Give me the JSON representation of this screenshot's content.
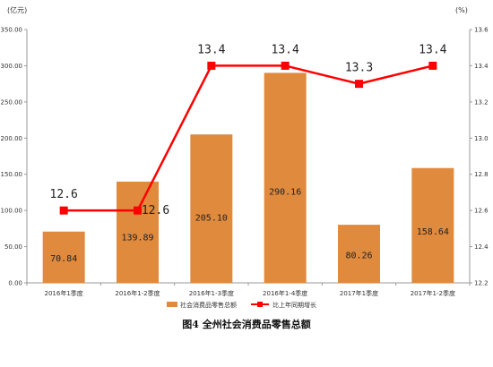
{
  "chart_data": {
    "type": "bar",
    "title": "图4 全州社会消费品零售总额",
    "left_unit": "(亿元)",
    "right_unit": "(%)",
    "categories": [
      "2016年1季度",
      "2016年1-2季度",
      "2016年1-3季度",
      "2016年1-4季度",
      "2017年1季度",
      "2017年1-2季度"
    ],
    "series": [
      {
        "name": "社会消费品零售总额",
        "type": "bar",
        "axis": "left",
        "values": [
          70.84,
          139.89,
          205.1,
          290.16,
          80.26,
          158.64
        ],
        "labels": [
          "70.84",
          "139.89",
          "205.10",
          "290.16",
          "80.26",
          "158.64"
        ],
        "color": "#e08a3e"
      },
      {
        "name": "比上年同期增长",
        "type": "line",
        "axis": "right",
        "values": [
          12.6,
          12.6,
          13.4,
          13.4,
          13.3,
          13.4
        ],
        "labels": [
          "12.6",
          "12.6",
          "13.4",
          "13.4",
          "13.3",
          "13.4"
        ],
        "color": "#ff0000"
      }
    ],
    "y_left": {
      "ylim": [
        0,
        350
      ],
      "ticks": [
        0,
        50,
        100,
        150,
        200,
        250,
        300,
        350
      ],
      "tick_labels": [
        "0.00",
        "50.00",
        "100.00",
        "150.00",
        "200.00",
        "250.00",
        "300.00",
        "350.00"
      ]
    },
    "y_right": {
      "ylim": [
        12.2,
        13.6
      ],
      "ticks": [
        12.2,
        12.4,
        12.6,
        12.8,
        13.0,
        13.2,
        13.4,
        13.6
      ],
      "tick_labels": [
        "12.2",
        "12.4",
        "12.6",
        "12.8",
        "13.0",
        "13.2",
        "13.4",
        "13.6"
      ]
    },
    "grid": false,
    "legend_position": "bottom"
  }
}
